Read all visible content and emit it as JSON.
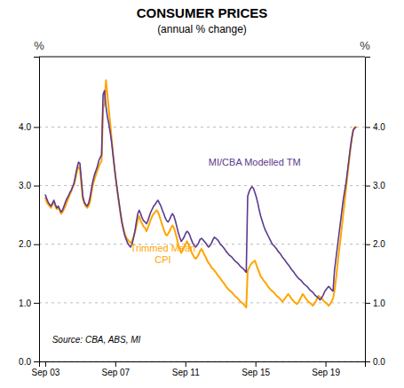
{
  "chart_data": {
    "type": "line",
    "title": "CONSUMER PRICES",
    "subtitle": "(annual % change)",
    "ylabel": "%",
    "y2label": "%",
    "source": "Source: CBA, ABS, MI",
    "grid": true,
    "xlim": [
      2003.4,
      2022.0
    ],
    "xticks": [
      {
        "value": 2003.75,
        "label": "Sep 03"
      },
      {
        "value": 2007.75,
        "label": "Sep 07"
      },
      {
        "value": 2011.75,
        "label": "Sep 11"
      },
      {
        "value": 2015.75,
        "label": "Sep 15"
      },
      {
        "value": 2019.75,
        "label": "Sep 19"
      }
    ],
    "ylim": [
      0.0,
      5.2
    ],
    "yticks": [
      {
        "value": 0.0,
        "label": "0.0"
      },
      {
        "value": 1.0,
        "label": "1.0"
      },
      {
        "value": 2.0,
        "label": "2.0"
      },
      {
        "value": 3.0,
        "label": "3.0"
      },
      {
        "value": 4.0,
        "label": "4.0"
      }
    ],
    "y2lim": [
      0.0,
      5.2
    ],
    "y2ticks": [
      {
        "value": 0.0,
        "label": "0.0"
      },
      {
        "value": 1.0,
        "label": "1.0"
      },
      {
        "value": 2.0,
        "label": "2.0"
      },
      {
        "value": 3.0,
        "label": "3.0"
      },
      {
        "value": 4.0,
        "label": "4.0"
      }
    ],
    "x": [
      2003.75,
      2003.8326,
      2003.9151,
      2003.9977,
      2004.0802,
      2004.1628,
      2004.2453,
      2004.3279,
      2004.4105,
      2004.493,
      2004.5756,
      2004.6581,
      2004.7407,
      2004.8233,
      2004.9058,
      2004.9884,
      2005.0709,
      2005.1535,
      2005.236,
      2005.3186,
      2005.4012,
      2005.4837,
      2005.5663,
      2005.6488,
      2005.7314,
      2005.814,
      2005.8965,
      2005.9791,
      2006.0616,
      2006.1442,
      2006.2267,
      2006.3093,
      2006.3919,
      2006.4744,
      2006.557,
      2006.6395,
      2006.7221,
      2006.8047,
      2006.8872,
      2006.9698,
      2007.0523,
      2007.1349,
      2007.2174,
      2007.3,
      2007.3826,
      2007.4651,
      2007.5477,
      2007.6302,
      2007.7128,
      2007.7953,
      2007.8779,
      2007.9605,
      2008.043,
      2008.1256,
      2008.2081,
      2008.2907,
      2008.3733,
      2008.4558,
      2008.5384,
      2008.6209,
      2008.7035,
      2008.786,
      2008.8686,
      2008.9512,
      2009.0337,
      2009.1163,
      2009.1988,
      2009.2814,
      2009.364,
      2009.4465,
      2009.5291,
      2009.6116,
      2009.6942,
      2009.7767,
      2009.8593,
      2009.9419,
      2010.0244,
      2010.107,
      2010.1895,
      2010.2721,
      2010.3547,
      2010.4372,
      2010.5198,
      2010.6023,
      2010.6849,
      2010.7674,
      2010.85,
      2010.9326,
      2011.0151,
      2011.0977,
      2011.1802,
      2011.2628,
      2011.3453,
      2011.4279,
      2011.5105,
      2011.593,
      2011.6756,
      2011.7581,
      2011.8407,
      2011.9233,
      2012.0058,
      2012.0884,
      2012.1709,
      2012.2535,
      2012.336,
      2012.4186,
      2012.5012,
      2012.5837,
      2012.6663,
      2012.7488,
      2012.8314,
      2012.914,
      2012.9965,
      2013.0791,
      2013.1616,
      2013.2442,
      2013.3267,
      2013.4093,
      2013.4919,
      2013.5744,
      2013.657,
      2013.7395,
      2013.8221,
      2013.9047,
      2013.9872,
      2014.0698,
      2014.1523,
      2014.2349,
      2014.3174,
      2014.4,
      2014.4826,
      2014.5651,
      2014.6477,
      2014.7302,
      2014.8128,
      2014.8953,
      2014.9779,
      2015.0605,
      2015.143,
      2015.2256,
      2015.3081,
      2015.3907,
      2015.4733,
      2015.5558,
      2015.6384,
      2015.7209,
      2015.8035,
      2015.886,
      2015.9686,
      2016.0512,
      2016.1337,
      2016.2163,
      2016.2988,
      2016.3814,
      2016.464,
      2016.5465,
      2016.6291,
      2016.7116,
      2016.7942,
      2016.8767,
      2016.9593,
      2017.0419,
      2017.1244,
      2017.207,
      2017.2895,
      2017.3721,
      2017.4547,
      2017.5372,
      2017.6198,
      2017.7023,
      2017.7849,
      2017.8674,
      2017.95,
      2018.0326,
      2018.1151,
      2018.1977,
      2018.2802,
      2018.3628,
      2018.4453,
      2018.5279,
      2018.6105,
      2018.693,
      2018.7756,
      2018.8581,
      2018.9407,
      2019.0233,
      2019.1058,
      2019.1884,
      2019.2709,
      2019.3535,
      2019.436,
      2019.5186,
      2019.6012,
      2019.6837,
      2019.7663,
      2019.8488,
      2019.9314,
      2020.014,
      2020.0965,
      2020.1791,
      2020.2616,
      2020.3442,
      2020.4267,
      2020.5093,
      2020.5919,
      2020.6744,
      2020.757,
      2020.8395,
      2020.9221,
      2021.0047,
      2021.0872,
      2021.1698,
      2021.2523,
      2021.3349,
      2021.4174,
      2021.5
    ],
    "series": [
      {
        "name": "Trimmed Mean\nCPI",
        "color": "#FFA500",
        "values": [
          2.8,
          2.72,
          2.68,
          2.65,
          2.62,
          2.68,
          2.72,
          2.65,
          2.6,
          2.62,
          2.58,
          2.52,
          2.55,
          2.6,
          2.65,
          2.72,
          2.78,
          2.85,
          2.9,
          2.98,
          3.02,
          3.12,
          3.25,
          3.32,
          3.28,
          3.02,
          2.78,
          2.7,
          2.65,
          2.62,
          2.65,
          2.72,
          2.88,
          3.02,
          3.1,
          3.18,
          3.25,
          3.32,
          3.38,
          3.42,
          4.32,
          4.4,
          4.8,
          4.55,
          4.3,
          4.05,
          3.78,
          3.52,
          3.28,
          3.08,
          2.88,
          2.7,
          2.52,
          2.38,
          2.28,
          2.18,
          2.12,
          2.08,
          2.05,
          2.02,
          2.05,
          2.12,
          2.2,
          2.3,
          2.42,
          2.48,
          2.4,
          2.35,
          2.3,
          2.28,
          2.22,
          2.28,
          2.35,
          2.42,
          2.48,
          2.52,
          2.55,
          2.58,
          2.55,
          2.48,
          2.4,
          2.32,
          2.25,
          2.18,
          2.15,
          2.18,
          2.22,
          2.28,
          2.32,
          2.28,
          2.2,
          2.1,
          2.0,
          1.92,
          1.85,
          1.9,
          1.95,
          2.0,
          2.05,
          2.0,
          1.95,
          1.88,
          1.82,
          1.78,
          1.75,
          1.78,
          1.82,
          1.88,
          1.92,
          1.88,
          1.82,
          1.78,
          1.72,
          1.68,
          1.65,
          1.6,
          1.58,
          1.55,
          1.52,
          1.48,
          1.45,
          1.42,
          1.38,
          1.35,
          1.32,
          1.28,
          1.25,
          1.22,
          1.2,
          1.18,
          1.15,
          1.12,
          1.1,
          1.08,
          1.05,
          1.02,
          1.0,
          0.98,
          0.95,
          0.92,
          1.55,
          1.6,
          1.65,
          1.68,
          1.7,
          1.72,
          1.65,
          1.58,
          1.52,
          1.45,
          1.42,
          1.38,
          1.35,
          1.32,
          1.28,
          1.25,
          1.22,
          1.2,
          1.18,
          1.15,
          1.12,
          1.1,
          1.08,
          1.05,
          1.02,
          1.05,
          1.08,
          1.12,
          1.15,
          1.12,
          1.08,
          1.05,
          1.02,
          1.0,
          0.98,
          1.0,
          1.05,
          1.1,
          1.15,
          1.12,
          1.08,
          1.05,
          1.02,
          1.0,
          0.98,
          0.95,
          0.98,
          1.02,
          1.08,
          1.12,
          1.1,
          1.08,
          1.05,
          1.02,
          1.0,
          0.98,
          0.95,
          0.98,
          1.02,
          1.08,
          1.2,
          1.4,
          1.62,
          1.85,
          2.05,
          2.28,
          2.5,
          2.72,
          2.95,
          3.18,
          3.4,
          3.62,
          3.8,
          3.95,
          4.0,
          4.0
        ]
      },
      {
        "name": "MI/CBA Modelled TM",
        "color": "#5B3A8E",
        "values": [
          2.85,
          2.78,
          2.72,
          2.68,
          2.65,
          2.7,
          2.75,
          2.68,
          2.62,
          2.65,
          2.6,
          2.55,
          2.58,
          2.65,
          2.72,
          2.78,
          2.82,
          2.88,
          2.92,
          2.98,
          3.05,
          3.18,
          3.3,
          3.4,
          3.38,
          3.1,
          2.82,
          2.72,
          2.68,
          2.65,
          2.7,
          2.8,
          2.95,
          3.08,
          3.18,
          3.25,
          3.32,
          3.42,
          3.48,
          3.52,
          4.55,
          4.62,
          4.35,
          4.18,
          4.05,
          3.9,
          3.72,
          3.5,
          3.28,
          3.08,
          2.9,
          2.72,
          2.55,
          2.38,
          2.25,
          2.15,
          2.08,
          2.02,
          1.98,
          1.95,
          2.0,
          2.1,
          2.22,
          2.38,
          2.52,
          2.58,
          2.52,
          2.45,
          2.4,
          2.38,
          2.35,
          2.4,
          2.48,
          2.55,
          2.6,
          2.65,
          2.68,
          2.72,
          2.75,
          2.7,
          2.65,
          2.58,
          2.52,
          2.45,
          2.4,
          2.38,
          2.42,
          2.48,
          2.52,
          2.48,
          2.4,
          2.3,
          2.2,
          2.12,
          2.05,
          2.08,
          2.12,
          2.18,
          2.22,
          2.2,
          2.15,
          2.08,
          2.02,
          1.98,
          1.95,
          1.98,
          2.02,
          2.08,
          2.1,
          2.08,
          2.05,
          2.02,
          1.98,
          1.95,
          1.98,
          2.02,
          2.08,
          2.12,
          2.1,
          2.08,
          2.05,
          2.0,
          1.98,
          1.95,
          1.92,
          1.88,
          1.85,
          1.82,
          1.8,
          1.78,
          1.75,
          1.72,
          1.7,
          1.68,
          1.65,
          1.62,
          1.6,
          1.58,
          1.55,
          1.52,
          2.82,
          2.9,
          2.95,
          2.98,
          2.95,
          2.88,
          2.8,
          2.7,
          2.58,
          2.48,
          2.4,
          2.32,
          2.25,
          2.2,
          2.15,
          2.1,
          2.05,
          2.0,
          1.98,
          1.95,
          1.92,
          1.88,
          1.85,
          1.82,
          1.78,
          1.75,
          1.72,
          1.68,
          1.65,
          1.62,
          1.58,
          1.55,
          1.52,
          1.48,
          1.45,
          1.42,
          1.4,
          1.38,
          1.35,
          1.32,
          1.3,
          1.28,
          1.25,
          1.22,
          1.2,
          1.18,
          1.15,
          1.12,
          1.1,
          1.08,
          1.05,
          1.08,
          1.12,
          1.18,
          1.22,
          1.25,
          1.28,
          1.25,
          1.22,
          1.2,
          1.55,
          1.75,
          1.95,
          2.15,
          2.35,
          2.55,
          2.75,
          2.9,
          3.05,
          3.25,
          3.45,
          3.65,
          3.82,
          3.95,
          3.98,
          4.0
        ]
      }
    ]
  }
}
